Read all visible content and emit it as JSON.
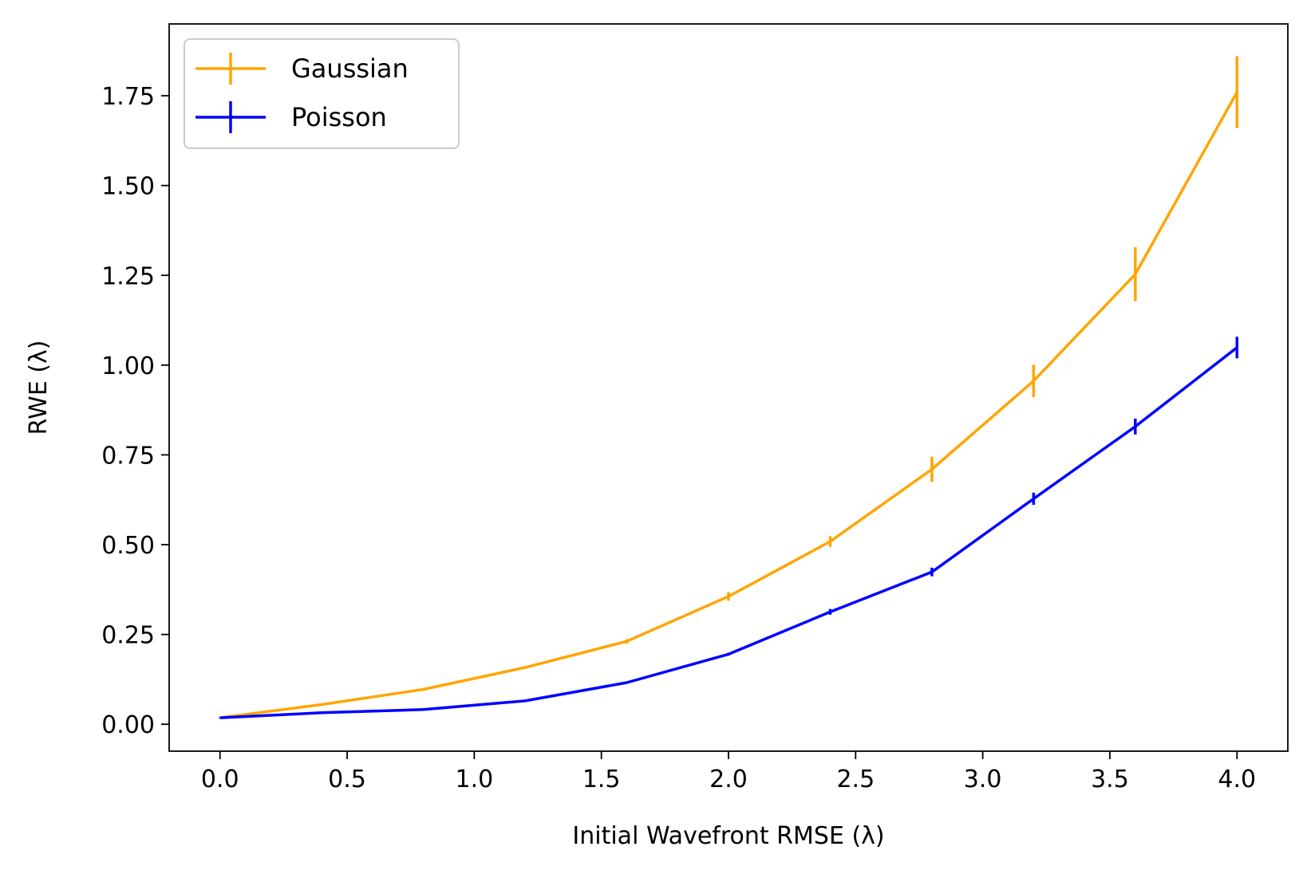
{
  "chart_data": {
    "type": "line",
    "xlabel": "Initial Wavefront RMSE (λ)",
    "ylabel": "RWE (λ)",
    "xlim": [
      -0.2,
      4.2
    ],
    "ylim": [
      -0.075,
      1.95
    ],
    "x_ticks": [
      0.0,
      0.5,
      1.0,
      1.5,
      2.0,
      2.5,
      3.0,
      3.5,
      4.0
    ],
    "x_tick_labels": [
      "0.0",
      "0.5",
      "1.0",
      "1.5",
      "2.0",
      "2.5",
      "3.0",
      "3.5",
      "4.0"
    ],
    "y_ticks": [
      0.0,
      0.25,
      0.5,
      0.75,
      1.0,
      1.25,
      1.5,
      1.75
    ],
    "y_tick_labels": [
      "0.00",
      "0.25",
      "0.50",
      "0.75",
      "1.00",
      "1.25",
      "1.50",
      "1.75"
    ],
    "grid": false,
    "legend_position": "top-left",
    "x": [
      0.0,
      0.4,
      0.8,
      1.2,
      1.6,
      2.0,
      2.4,
      2.8,
      3.2,
      3.6,
      4.0
    ],
    "series": [
      {
        "name": "Gaussian",
        "color": "#FFA500",
        "values": [
          0.018,
          0.055,
          0.097,
          0.158,
          0.231,
          0.356,
          0.509,
          0.71,
          0.956,
          1.253,
          1.76
        ],
        "errors": [
          0.001,
          0.002,
          0.003,
          0.004,
          0.006,
          0.012,
          0.015,
          0.035,
          0.045,
          0.075,
          0.1
        ]
      },
      {
        "name": "Poisson",
        "color": "#0000FF",
        "values": [
          0.018,
          0.032,
          0.041,
          0.065,
          0.116,
          0.195,
          0.313,
          0.424,
          0.628,
          0.829,
          1.049
        ],
        "errors": [
          0.001,
          0.001,
          0.002,
          0.002,
          0.003,
          0.004,
          0.008,
          0.012,
          0.017,
          0.022,
          0.03
        ]
      }
    ]
  }
}
